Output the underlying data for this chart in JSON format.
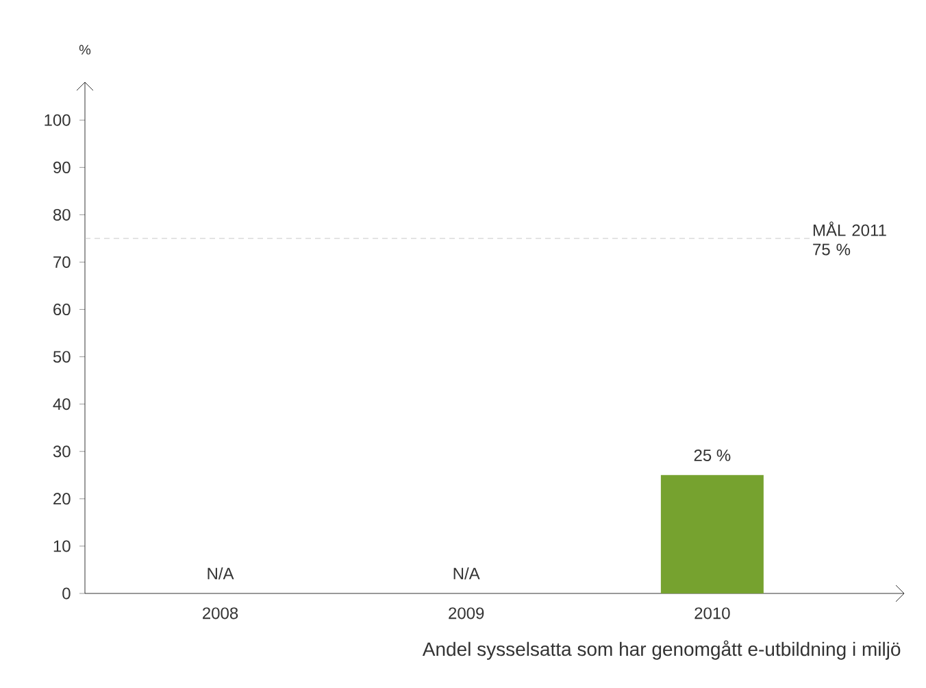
{
  "chart_data": {
    "type": "bar",
    "ylabel": "%",
    "xlabel": "Andel sysselsatta som har genomgått e-utbildning i miljö",
    "categories": [
      "2008",
      "2009",
      "2010"
    ],
    "values": [
      null,
      null,
      25
    ],
    "value_labels": [
      "N/A",
      "N/A",
      "25 %"
    ],
    "color": "#76a22f",
    "ylim": [
      0,
      108
    ],
    "yticks": [
      0,
      10,
      20,
      30,
      40,
      50,
      60,
      70,
      80,
      90,
      100
    ],
    "ref_lines": [
      {
        "axis": "y",
        "value": 75,
        "label": "MÅL 2011 75 %",
        "color": "#bbbbbb",
        "line_style": "dashed"
      }
    ],
    "grid": false
  }
}
